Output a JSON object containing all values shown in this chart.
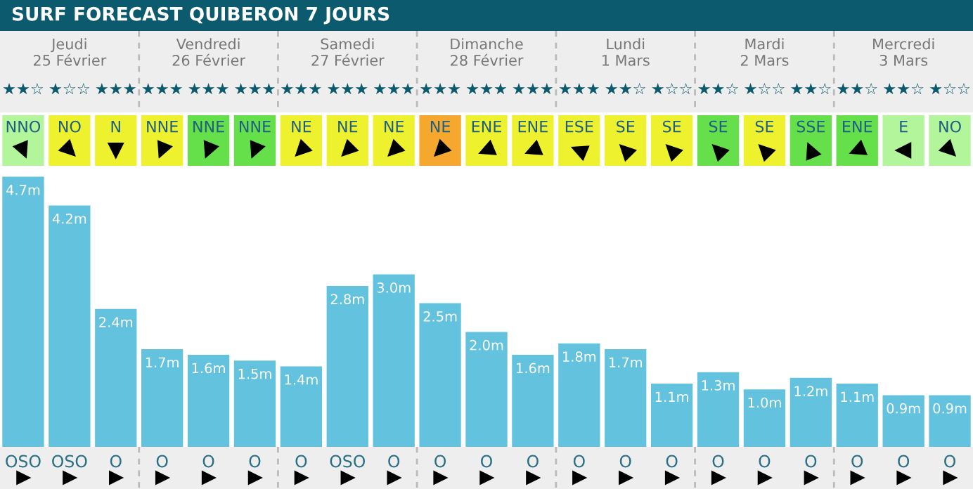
{
  "chart_data": {
    "type": "bar",
    "title": "SURF FORECAST QUIBERON 7 JOURS",
    "categories": [
      "OSO",
      "OSO",
      "O",
      "O",
      "O",
      "O",
      "O",
      "OSO",
      "O",
      "O",
      "O",
      "O",
      "O",
      "O",
      "O",
      "O",
      "O",
      "O",
      "O",
      "O",
      "O"
    ],
    "values": [
      4.7,
      4.2,
      2.4,
      1.7,
      1.6,
      1.5,
      1.4,
      2.8,
      3.0,
      2.5,
      2.0,
      1.6,
      1.8,
      1.7,
      1.1,
      1.3,
      1.0,
      1.2,
      1.1,
      0.9,
      0.9
    ],
    "value_labels": [
      "4.7m",
      "4.2m",
      "2.4m",
      "1.7m",
      "1.6m",
      "1.5m",
      "1.4m",
      "2.8m",
      "3.0m",
      "2.5m",
      "2.0m",
      "1.6m",
      "1.8m",
      "1.7m",
      "1.1m",
      "1.3m",
      "1.0m",
      "1.2m",
      "1.1m",
      "0.9m",
      "0.9m"
    ],
    "color": "#63c3de",
    "annotations": [
      "Jeudi\n25 Février",
      "Vendredi\n26 Février",
      "Samedi\n27 Février",
      "Dimanche\n28 Février",
      "Lundi\n1 Mars",
      "Mardi\n2 Mars",
      "Mercredi\n3 Mars",
      "★★☆",
      "★☆☆",
      "★★★",
      "★★★",
      "★★★",
      "★★★",
      "★★★",
      "★★★",
      "★★★",
      "★★★",
      "★★★",
      "★★★",
      "★★★",
      "★★☆",
      "★☆☆",
      "★★☆",
      "★☆☆",
      "★★☆",
      "★★☆",
      "★★☆",
      "★☆☆",
      "NNO",
      "NO",
      "N",
      "NNE",
      "NNE",
      "NNE",
      "NE",
      "NE",
      "NE",
      "NE",
      "ENE",
      "ENE",
      "ESE",
      "SE",
      "SE",
      "SE",
      "SE",
      "SSE",
      "ENE",
      "E",
      "NO"
    ]
  }
}
